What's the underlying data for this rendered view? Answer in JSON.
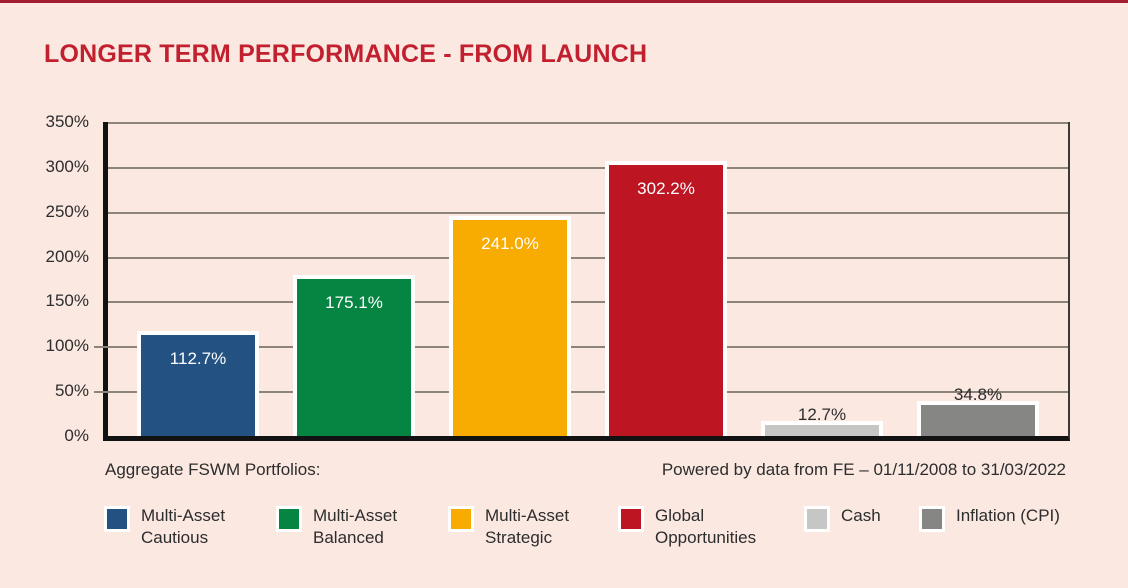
{
  "page": {
    "title": "LONGER TERM PERFORMANCE - FROM LAUNCH",
    "background_color": "#FAE8E1",
    "title_color": "#C2202F",
    "accent_bar_color": "#A01D32"
  },
  "chart_data": {
    "type": "bar",
    "title": "LONGER TERM PERFORMANCE - FROM LAUNCH",
    "categories": [
      "Multi-Asset Cautious",
      "Multi-Asset Balanced",
      "Multi-Asset Strategic",
      "Global Opportunities",
      "Cash",
      "Inflation (CPI)"
    ],
    "values": [
      112.7,
      175.1,
      241.0,
      302.2,
      12.7,
      34.8
    ],
    "value_labels": [
      "112.7%",
      "175.1%",
      "241.0%",
      "302.2%",
      "12.7%",
      "34.8%"
    ],
    "value_label_inside": [
      true,
      true,
      true,
      true,
      false,
      false
    ],
    "bar_colors": [
      "#235181",
      "#068442",
      "#F8AB00",
      "#BE1523",
      "#C6C6C5",
      "#868685"
    ],
    "ylim": [
      0,
      350
    ],
    "ytick_labels": [
      "350%",
      "300%",
      "250%",
      "200%",
      "150%",
      "100%",
      "50%",
      "0%"
    ],
    "outside_tick_labels": [
      "100%",
      "50%"
    ],
    "grid": true,
    "legend_position": "bottom",
    "xlabel": "",
    "ylabel": ""
  },
  "legend": {
    "items": [
      {
        "label": "Multi-Asset\nCautious",
        "color": "#235181"
      },
      {
        "label": "Multi-Asset\nBalanced",
        "color": "#068442"
      },
      {
        "label": "Multi-Asset\nStrategic",
        "color": "#F8AB00"
      },
      {
        "label": "Global\nOpportunities",
        "color": "#BE1523"
      },
      {
        "label": "Cash",
        "color": "#C6C6C5"
      },
      {
        "label": "Inflation (CPI)",
        "color": "#868685"
      }
    ]
  },
  "footer": {
    "left": "Aggregate FSWM Portfolios:",
    "right": "Powered by data from FE – 01/11/2008 to 31/03/2022"
  }
}
